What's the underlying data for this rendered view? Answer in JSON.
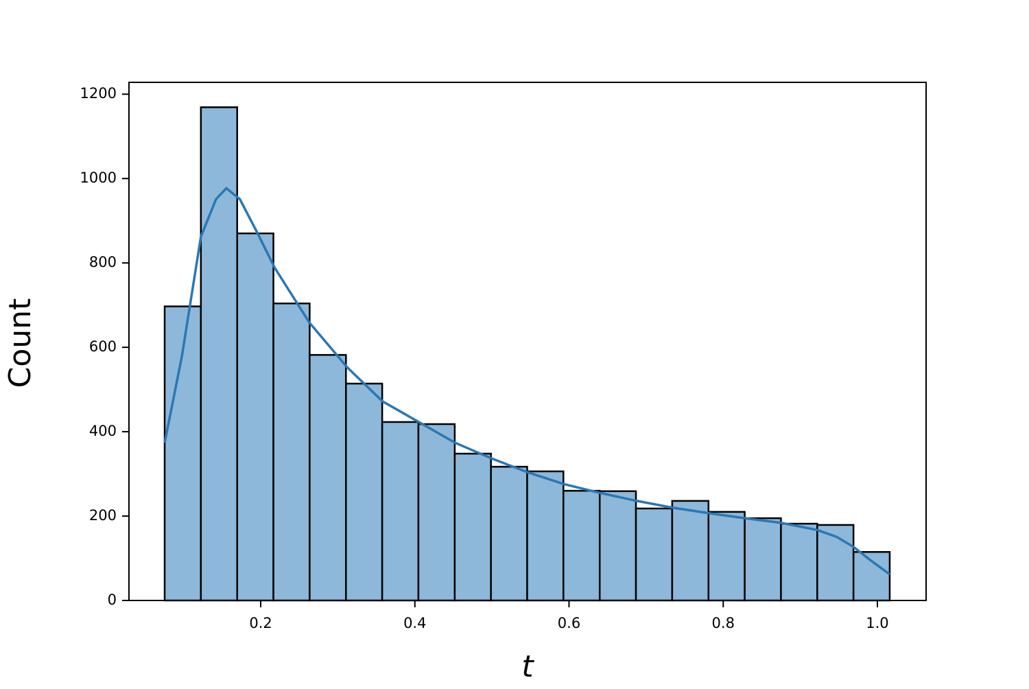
{
  "chart_data": {
    "type": "histogram",
    "xlabel": "t",
    "ylabel": "Count",
    "bins": [
      0.0754,
      0.1224,
      0.1695,
      0.2165,
      0.2635,
      0.3106,
      0.3576,
      0.4046,
      0.4517,
      0.4987,
      0.5457,
      0.5927,
      0.6398,
      0.6868,
      0.7338,
      0.7809,
      0.8279,
      0.8749,
      0.922,
      0.969,
      1.016
    ],
    "values": [
      697,
      1169,
      870,
      704,
      582,
      514,
      423,
      418,
      348,
      317,
      306,
      260,
      259,
      218,
      236,
      210,
      195,
      182,
      179,
      115
    ],
    "color": "#8db8d9",
    "edgecolor": "#000000",
    "kde": {
      "color": "#2a77b4",
      "x": [
        0.0754,
        0.0976,
        0.1224,
        0.142,
        0.1554,
        0.173,
        0.196,
        0.218,
        0.263,
        0.312,
        0.358,
        0.405,
        0.452,
        0.499,
        0.546,
        0.593,
        0.64,
        0.688,
        0.734,
        0.781,
        0.828,
        0.875,
        0.922,
        0.947,
        0.969,
        0.992,
        1.016
      ],
      "y": [
        374,
        577,
        862,
        951,
        977,
        951,
        870,
        789,
        659,
        553,
        472,
        423,
        374,
        337,
        304,
        276,
        255,
        236,
        220,
        207,
        195,
        184,
        167,
        151,
        127,
        94,
        62
      ]
    },
    "xlim": [
      0.0291,
      1.0632
    ],
    "ylim": [
      0,
      1228
    ],
    "xticks": [
      0.2,
      0.4,
      0.6,
      0.8,
      {
        "value": 1.0,
        "label": "1.0"
      }
    ],
    "yticks": [
      0,
      200,
      400,
      600,
      800,
      1000,
      1200
    ]
  }
}
